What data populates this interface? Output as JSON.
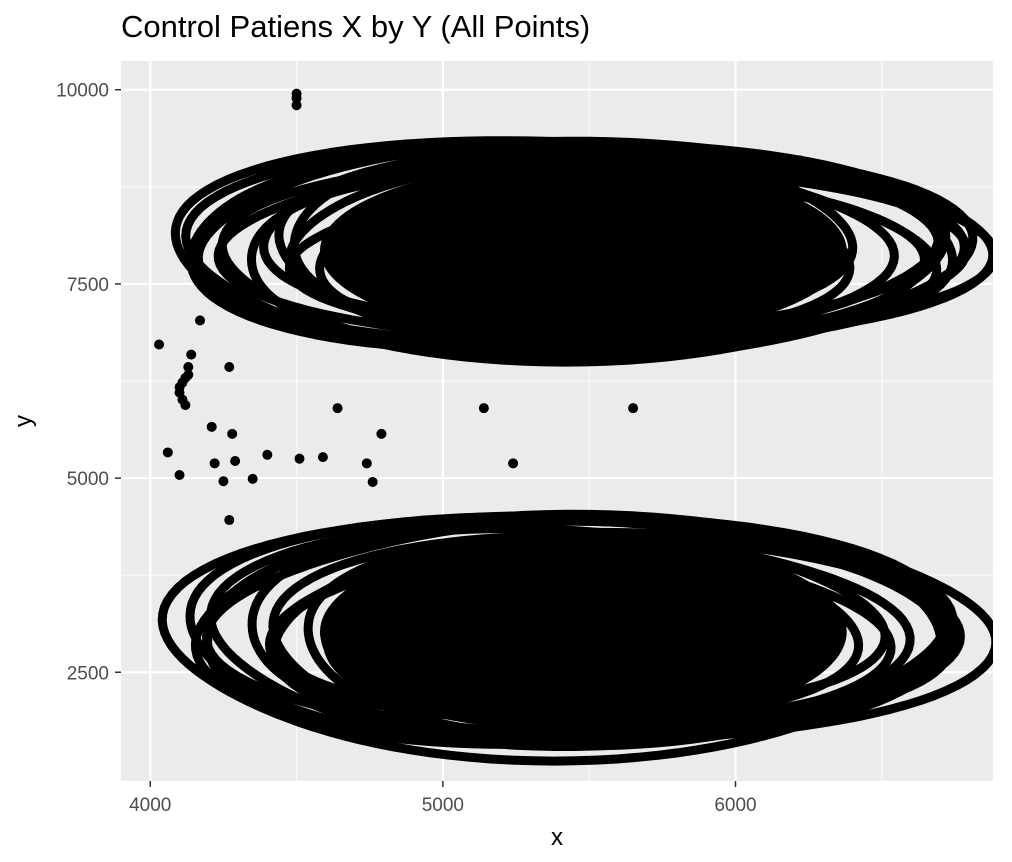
{
  "chart_data": {
    "type": "scatter",
    "title": "Control Patiens X by Y (All Points)",
    "xlabel": "x",
    "ylabel": "y",
    "xlim": [
      3900,
      6880
    ],
    "ylim": [
      1100,
      10370
    ],
    "x_ticks": [
      4000,
      5000,
      6000
    ],
    "x_tick_labels": [
      "4000",
      "5000",
      "6000"
    ],
    "y_ticks": [
      2500,
      5000,
      7500,
      10000
    ],
    "y_tick_labels": [
      "2500",
      "5000",
      "7500",
      "10000"
    ],
    "grid": true,
    "legend": "none",
    "colors": {
      "panel_background": "#ebebeb",
      "grid_major": "#ffffff",
      "points": "#000000"
    },
    "clusters": [
      {
        "label": "upper trajectory band",
        "center": [
          5480,
          7930
        ],
        "x_range": [
          4050,
          6800
        ],
        "y_range": [
          6350,
          9600
        ],
        "approx_loops": 14
      },
      {
        "label": "lower trajectory band",
        "center": [
          5500,
          3020
        ],
        "x_range": [
          4030,
          6730
        ],
        "y_range": [
          1400,
          4750
        ],
        "approx_loops": 14
      }
    ],
    "points": [
      [
        4500,
        9950
      ],
      [
        4500,
        9890
      ],
      [
        4500,
        9800
      ],
      [
        4030,
        6720
      ],
      [
        4140,
        6590
      ],
      [
        4270,
        6430
      ],
      [
        4130,
        6430
      ],
      [
        4130,
        6330
      ],
      [
        4120,
        6290
      ],
      [
        4110,
        6230
      ],
      [
        4100,
        6170
      ],
      [
        4100,
        6100
      ],
      [
        4110,
        6010
      ],
      [
        4120,
        5940
      ],
      [
        4640,
        5900
      ],
      [
        5140,
        5900
      ],
      [
        5650,
        5900
      ],
      [
        4210,
        5660
      ],
      [
        4280,
        5570
      ],
      [
        4790,
        5570
      ],
      [
        4400,
        5300
      ],
      [
        4060,
        5330
      ],
      [
        4290,
        5220
      ],
      [
        4220,
        5190
      ],
      [
        4510,
        5250
      ],
      [
        4590,
        5270
      ],
      [
        4740,
        5190
      ],
      [
        5240,
        5190
      ],
      [
        4100,
        5040
      ],
      [
        4250,
        4960
      ],
      [
        4350,
        4990
      ],
      [
        4760,
        4950
      ],
      [
        4270,
        4460
      ],
      [
        4170,
        7030
      ],
      [
        6080,
        9070
      ],
      [
        6160,
        9080
      ],
      [
        6220,
        9090
      ]
    ]
  }
}
